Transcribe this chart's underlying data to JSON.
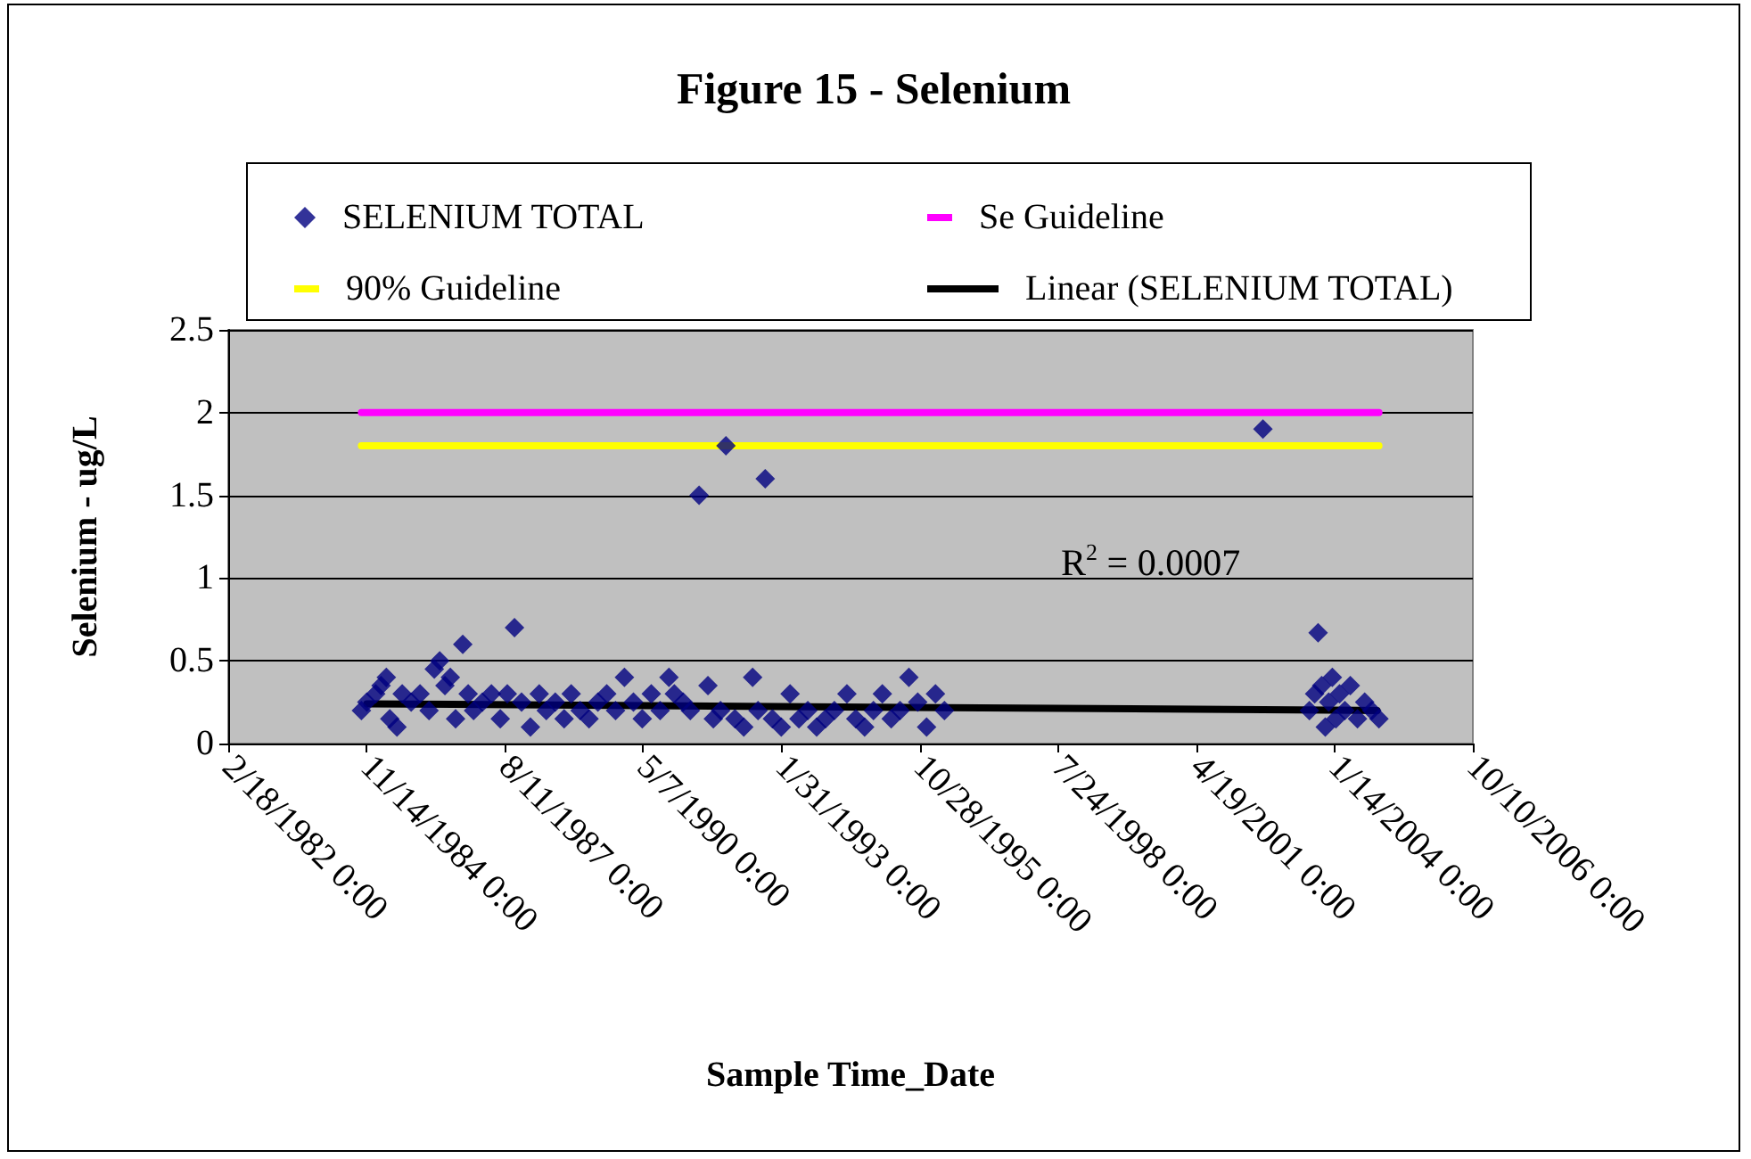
{
  "chart_data": {
    "type": "scatter",
    "title": "Figure 15 - Selenium",
    "xlabel": "Sample Time_Date",
    "ylabel": "Selenium - ug/L",
    "annotations": [
      "R$^{2}$ = 0.0007"
    ],
    "xlim": [
      "1982-02-18",
      "2006-10-10"
    ],
    "xticks": [
      {
        "value": "1982-02-18",
        "label": "2/18/1982 0:00"
      },
      {
        "value": "1984-11-14",
        "label": "11/14/1984 0:00"
      },
      {
        "value": "1987-08-11",
        "label": "8/11/1987 0:00"
      },
      {
        "value": "1990-05-07",
        "label": "5/7/1990 0:00"
      },
      {
        "value": "1993-01-31",
        "label": "1/31/1993 0:00"
      },
      {
        "value": "1995-10-28",
        "label": "10/28/1995 0:00"
      },
      {
        "value": "1998-07-24",
        "label": "7/24/1998 0:00"
      },
      {
        "value": "2001-04-19",
        "label": "4/19/2001 0:00"
      },
      {
        "value": "2004-01-14",
        "label": "1/14/2004 0:00"
      },
      {
        "value": "2006-10-10",
        "label": "10/10/2006 0:00"
      }
    ],
    "ylim": [
      0,
      2.5
    ],
    "yticks": [
      0,
      0.5,
      1,
      1.5,
      2,
      2.5
    ],
    "grid": "y",
    "legend": "top",
    "series": [
      {
        "name": "SELENIUM TOTAL",
        "type": "scatter",
        "marker": "diamond",
        "color": "#000080",
        "x": [
          "1984-10-08",
          "1984-11-16",
          "1985-01-19",
          "1985-02-27",
          "1985-04-06",
          "1985-05-01",
          "1985-06-22",
          "1985-07-30",
          "1985-10-03",
          "1985-12-06",
          "1986-02-09",
          "1986-03-19",
          "1986-04-27",
          "1986-06-04",
          "1986-07-13",
          "1986-08-20",
          "1986-10-11",
          "1986-11-19",
          "1986-12-28",
          "1987-03-02",
          "1987-05-06",
          "1987-07-09",
          "1987-08-29",
          "1987-10-20",
          "1987-12-10",
          "1988-02-12",
          "1988-04-16",
          "1988-06-06",
          "1988-08-10",
          "1988-10-13",
          "1988-12-03",
          "1989-02-06",
          "1989-04-11",
          "1989-06-14",
          "1989-08-17",
          "1989-10-20",
          "1989-12-23",
          "1990-02-26",
          "1990-05-01",
          "1990-07-05",
          "1990-09-07",
          "1990-11-10",
          "1990-12-19",
          "1991-02-21",
          "1991-04-13",
          "1991-06-16",
          "1991-08-19",
          "1991-09-27",
          "1991-11-18",
          "1991-12-27",
          "1992-03-01",
          "1992-05-04",
          "1992-07-07",
          "1992-08-15",
          "1992-10-06",
          "1992-11-27",
          "1993-01-30",
          "1993-04-04",
          "1993-06-07",
          "1993-08-10",
          "1993-10-13",
          "1993-12-16",
          "1994-02-18",
          "1994-05-20",
          "1994-07-23",
          "1994-09-25",
          "1994-11-28",
          "1995-01-31",
          "1995-04-05",
          "1995-06-08",
          "1995-08-11",
          "1995-10-14",
          "1995-12-17",
          "1996-02-19",
          "1996-04-24",
          "2002-08-14",
          "2003-07-16",
          "2003-08-23",
          "2003-09-17",
          "2003-10-13",
          "2003-11-08",
          "2003-12-03",
          "2003-12-29",
          "2004-01-24",
          "2004-02-19",
          "2004-03-29",
          "2004-05-07",
          "2004-06-28",
          "2004-08-19",
          "2004-10-09",
          "2004-11-30"
        ],
        "values": [
          0.2,
          0.25,
          0.3,
          0.35,
          0.4,
          0.15,
          0.1,
          0.3,
          0.25,
          0.3,
          0.2,
          0.45,
          0.5,
          0.35,
          0.4,
          0.15,
          0.6,
          0.3,
          0.2,
          0.25,
          0.3,
          0.15,
          0.3,
          0.7,
          0.25,
          0.1,
          0.3,
          0.2,
          0.25,
          0.15,
          0.3,
          0.2,
          0.15,
          0.25,
          0.3,
          0.2,
          0.4,
          0.25,
          0.15,
          0.3,
          0.2,
          0.4,
          0.3,
          0.25,
          0.2,
          1.5,
          0.35,
          0.15,
          0.2,
          1.8,
          0.15,
          0.1,
          0.4,
          0.2,
          1.6,
          0.15,
          0.1,
          0.3,
          0.15,
          0.2,
          0.1,
          0.15,
          0.2,
          0.3,
          0.15,
          0.1,
          0.2,
          0.3,
          0.15,
          0.2,
          0.4,
          0.25,
          0.1,
          0.3,
          0.2,
          1.9,
          0.2,
          0.3,
          0.67,
          0.35,
          0.1,
          0.25,
          0.4,
          0.15,
          0.3,
          0.2,
          0.35,
          0.15,
          0.25,
          0.2,
          0.15
        ]
      },
      {
        "name": "Se Guideline",
        "type": "line",
        "color": "#ff00ff",
        "x": [
          "1984-10-08",
          "2004-11-30"
        ],
        "values": [
          2,
          2
        ]
      },
      {
        "name": "90% Guideline",
        "type": "line",
        "color": "#ffff00",
        "x": [
          "1984-10-08",
          "2004-11-30"
        ],
        "values": [
          1.8,
          1.8
        ]
      },
      {
        "name": "Linear (SELENIUM TOTAL)",
        "type": "line",
        "color": "#000000",
        "x": [
          "1984-11-16",
          "2004-11-16"
        ],
        "values": [
          0.24,
          0.2
        ]
      }
    ]
  }
}
